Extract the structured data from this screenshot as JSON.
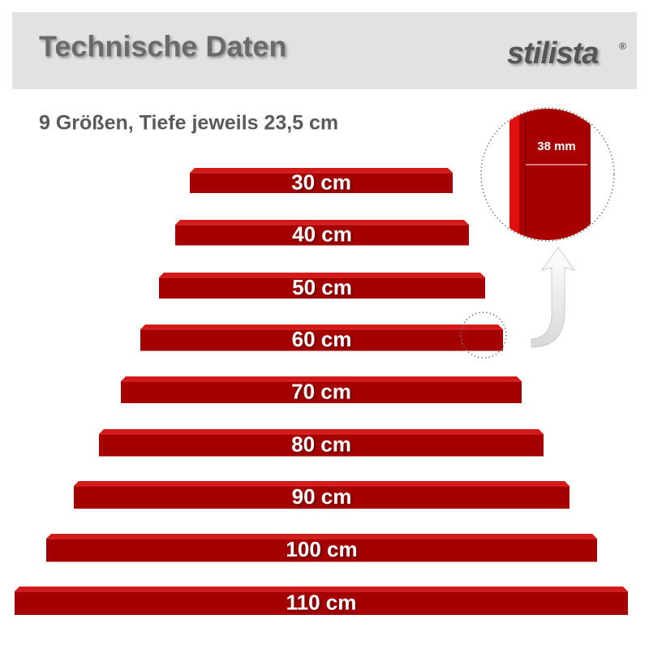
{
  "header": {
    "title": "Technische Daten",
    "logo": "stilista",
    "logo_mark": "®"
  },
  "subtitle": "9 Größen, Tiefe jeweils 23,5 cm",
  "shelves": [
    {
      "label": "30 cm"
    },
    {
      "label": "40 cm"
    },
    {
      "label": "50 cm"
    },
    {
      "label": "60 cm"
    },
    {
      "label": "70 cm"
    },
    {
      "label": "80 cm"
    },
    {
      "label": "90 cm"
    },
    {
      "label": "100 cm"
    },
    {
      "label": "110 cm"
    }
  ],
  "detail": {
    "label": "38 mm"
  }
}
